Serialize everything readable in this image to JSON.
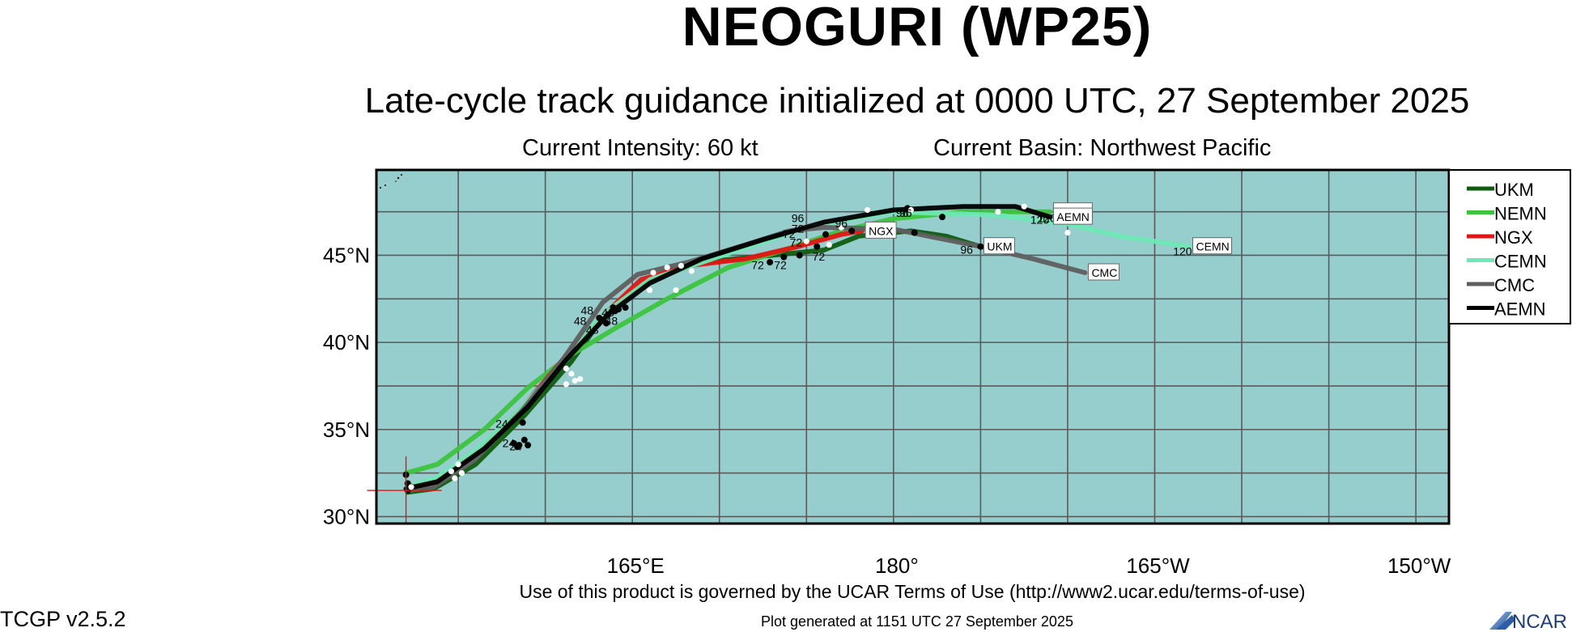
{
  "title": "NEOGURI (WP25)",
  "subtitle": "Late-cycle track guidance initialized at 0000 UTC, 27 September 2025",
  "current_intensity": "Current Intensity: 60 kt",
  "current_basin": "Current Basin: Northwest Pacific",
  "terms": "Use of this product is governed by the UCAR Terms of Use (http://www2.ucar.edu/terms-of-use)",
  "plot_generated": "Plot generated at 1151 UTC   27 September 2025",
  "version": "TCGP v2.5.2",
  "logo_text": "NCAR",
  "map": {
    "lat_labels": [
      "45°N",
      "40°N",
      "35°N",
      "30°N"
    ],
    "lon_labels": [
      "165°E",
      "180°",
      "165°W",
      "150°W"
    ],
    "ocean_color": "#96cdcd",
    "grid_color": "#5a5a5a",
    "initial_position": {
      "lon": 152.0,
      "lat": 31.5
    }
  },
  "legend": [
    {
      "name": "UKM",
      "color": "#0e5c0e"
    },
    {
      "name": "NEMN",
      "color": "#3cc43c"
    },
    {
      "name": "NGX",
      "color": "#e51414"
    },
    {
      "name": "CEMN",
      "color": "#6ee8b4"
    },
    {
      "name": "CMC",
      "color": "#5f5f5f"
    },
    {
      "name": "AEMN",
      "color": "#000000"
    }
  ],
  "chart_data": {
    "type": "map-tracks",
    "xlim": [
      150.3,
      211.9
    ],
    "ylim": [
      29.6,
      49.9
    ],
    "tracks": [
      {
        "name": "UKM",
        "color": "#0e5c0e",
        "end_label": "UKM",
        "points": [
          [
            152.1,
            31.4
          ],
          [
            153.6,
            31.6
          ],
          [
            156.0,
            33.0
          ],
          [
            158.8,
            35.8
          ],
          [
            161.5,
            38.9
          ],
          [
            163.5,
            41.7
          ],
          [
            166.0,
            43.6
          ],
          [
            169.0,
            44.6
          ],
          [
            173.0,
            45.0
          ],
          [
            176.0,
            45.3
          ],
          [
            178.0,
            46.1
          ],
          [
            181.0,
            46.4
          ],
          [
            183.0,
            46.1
          ],
          [
            185.0,
            45.5
          ]
        ],
        "hour_labels": [
          {
            "text": "96",
            "lon": 184.2,
            "lat": 45.1
          }
        ]
      },
      {
        "name": "NEMN",
        "color": "#3cc43c",
        "end_label": "NEMN",
        "points": [
          [
            152.0,
            32.5
          ],
          [
            153.8,
            33.0
          ],
          [
            156.5,
            35.0
          ],
          [
            159.0,
            37.4
          ],
          [
            161.5,
            39.3
          ],
          [
            164.0,
            40.8
          ],
          [
            167.0,
            42.5
          ],
          [
            170.5,
            44.3
          ],
          [
            174.0,
            45.4
          ],
          [
            177.0,
            46.4
          ],
          [
            180.0,
            47.1
          ],
          [
            184.0,
            47.5
          ],
          [
            189.0,
            47.5
          ]
        ],
        "hour_labels": [
          {
            "text": "96",
            "lon": 180.5,
            "lat": 47.2
          },
          {
            "text": "120",
            "lon": 188.8,
            "lat": 46.9
          }
        ]
      },
      {
        "name": "NGX",
        "color": "#e51414",
        "end_label": "NGX",
        "points": [
          [
            152.0,
            31.6
          ],
          [
            153.8,
            32.0
          ],
          [
            156.2,
            33.8
          ],
          [
            158.8,
            36.4
          ],
          [
            161.0,
            39.0
          ],
          [
            163.6,
            41.8
          ],
          [
            165.5,
            43.6
          ],
          [
            168.2,
            44.4
          ],
          [
            171.5,
            44.8
          ],
          [
            174.5,
            45.5
          ],
          [
            177.0,
            46.2
          ],
          [
            178.2,
            46.4
          ]
        ],
        "hour_labels": [
          {
            "text": "96",
            "lon": 177.0,
            "lat": 46.6
          }
        ]
      },
      {
        "name": "CEMN",
        "color": "#6ee8b4",
        "end_label": "CEMN",
        "points": [
          [
            152.0,
            31.7
          ],
          [
            153.7,
            32.2
          ],
          [
            156.0,
            33.8
          ],
          [
            158.6,
            36.2
          ],
          [
            160.8,
            38.6
          ],
          [
            163.2,
            41.5
          ],
          [
            166.0,
            43.6
          ],
          [
            169.0,
            44.6
          ],
          [
            172.0,
            45.6
          ],
          [
            175.0,
            46.6
          ],
          [
            180.0,
            47.5
          ],
          [
            186.0,
            47.3
          ],
          [
            190.0,
            46.8
          ],
          [
            193.0,
            46.1
          ],
          [
            197.0,
            45.5
          ]
        ],
        "hour_labels": [
          {
            "text": "120",
            "lon": 196.6,
            "lat": 45.0
          }
        ]
      },
      {
        "name": "CMC",
        "color": "#5f5f5f",
        "end_label": "CMC",
        "points": [
          [
            152.1,
            31.5
          ],
          [
            153.6,
            31.7
          ],
          [
            156.0,
            33.3
          ],
          [
            158.6,
            36.0
          ],
          [
            161.0,
            39.0
          ],
          [
            163.3,
            42.3
          ],
          [
            165.3,
            43.9
          ],
          [
            168.2,
            44.6
          ],
          [
            171.5,
            45.6
          ],
          [
            174.0,
            46.4
          ],
          [
            176.0,
            46.6
          ],
          [
            180.0,
            46.5
          ],
          [
            185.0,
            45.5
          ],
          [
            188.0,
            44.8
          ],
          [
            191.0,
            44.0
          ]
        ],
        "hour_labels": [
          {
            "text": "96",
            "lon": 174.5,
            "lat": 46.9
          }
        ]
      },
      {
        "name": "AEMN",
        "color": "#000000",
        "end_label": "AEMN",
        "points": [
          [
            152.0,
            31.6
          ],
          [
            153.8,
            32.0
          ],
          [
            156.5,
            33.9
          ],
          [
            159.0,
            36.3
          ],
          [
            161.2,
            39.0
          ],
          [
            163.6,
            41.6
          ],
          [
            166.0,
            43.4
          ],
          [
            169.0,
            44.8
          ],
          [
            172.5,
            45.9
          ],
          [
            176.0,
            46.9
          ],
          [
            180.0,
            47.6
          ],
          [
            184.0,
            47.8
          ],
          [
            187.0,
            47.8
          ],
          [
            189.0,
            47.2
          ]
        ],
        "hour_labels": [
          {
            "text": "96",
            "lon": 180.7,
            "lat": 47.2
          },
          {
            "text": "120",
            "lon": 188.4,
            "lat": 46.8
          }
        ]
      }
    ],
    "black_markers": [
      [
        152.0,
        32.4
      ],
      [
        152.1,
        31.9
      ],
      [
        152.3,
        31.7
      ],
      [
        152.1,
        31.5
      ],
      [
        158.7,
        35.4
      ],
      [
        158.5,
        34.1
      ],
      [
        158.8,
        34.4
      ],
      [
        158.2,
        34.2
      ],
      [
        159.0,
        34.1
      ],
      [
        158.4,
        34.0
      ],
      [
        163.1,
        41.4
      ],
      [
        163.5,
        41.1
      ],
      [
        163.9,
        42.0
      ],
      [
        164.0,
        41.8
      ],
      [
        164.2,
        41.9
      ],
      [
        164.6,
        42.0
      ],
      [
        163.6,
        41.6
      ],
      [
        172.9,
        44.6
      ],
      [
        173.7,
        44.9
      ],
      [
        174.6,
        45.0
      ],
      [
        175.6,
        45.5
      ],
      [
        176.1,
        46.2
      ],
      [
        177.6,
        46.4
      ],
      [
        180.8,
        47.7
      ],
      [
        181.2,
        46.3
      ],
      [
        182.8,
        47.2
      ],
      [
        185.0,
        45.5
      ]
    ],
    "white_markers": [
      [
        152.3,
        31.7
      ],
      [
        155.0,
        33.0
      ],
      [
        154.6,
        32.6
      ],
      [
        154.8,
        32.2
      ],
      [
        155.2,
        32.5
      ],
      [
        161.5,
        38.2
      ],
      [
        161.2,
        37.6
      ],
      [
        161.7,
        37.8
      ],
      [
        161.2,
        38.5
      ],
      [
        162.0,
        37.9
      ],
      [
        166.2,
        44.0
      ],
      [
        167.0,
        44.3
      ],
      [
        167.8,
        44.4
      ],
      [
        167.5,
        43.0
      ],
      [
        166.0,
        43.0
      ],
      [
        168.4,
        44.1
      ],
      [
        175.0,
        45.8
      ],
      [
        177.0,
        46.6
      ],
      [
        176.3,
        45.6
      ],
      [
        178.5,
        47.6
      ],
      [
        181.0,
        47.6
      ],
      [
        186.0,
        47.5
      ],
      [
        187.5,
        47.8
      ],
      [
        190.0,
        46.3
      ]
    ],
    "hour_labels": [
      {
        "text": "24",
        "lon": 157.5,
        "lat": 35.1
      },
      {
        "text": "24",
        "lon": 157.9,
        "lat": 34.0
      },
      {
        "text": "24",
        "lon": 158.3,
        "lat": 33.8
      },
      {
        "text": "48",
        "lon": 162.0,
        "lat": 41.0
      },
      {
        "text": "48",
        "lon": 162.4,
        "lat": 41.6
      },
      {
        "text": "48",
        "lon": 163.6,
        "lat": 41.5
      },
      {
        "text": "48",
        "lon": 163.8,
        "lat": 41.0
      },
      {
        "text": "48",
        "lon": 162.7,
        "lat": 40.5
      },
      {
        "text": "72",
        "lon": 172.2,
        "lat": 44.2
      },
      {
        "text": "72",
        "lon": 173.5,
        "lat": 44.2
      },
      {
        "text": "72",
        "lon": 175.7,
        "lat": 44.7
      },
      {
        "text": "72",
        "lon": 174.4,
        "lat": 45.5
      },
      {
        "text": "72",
        "lon": 174.0,
        "lat": 46.0
      },
      {
        "text": "72",
        "lon": 174.5,
        "lat": 46.3
      }
    ]
  }
}
